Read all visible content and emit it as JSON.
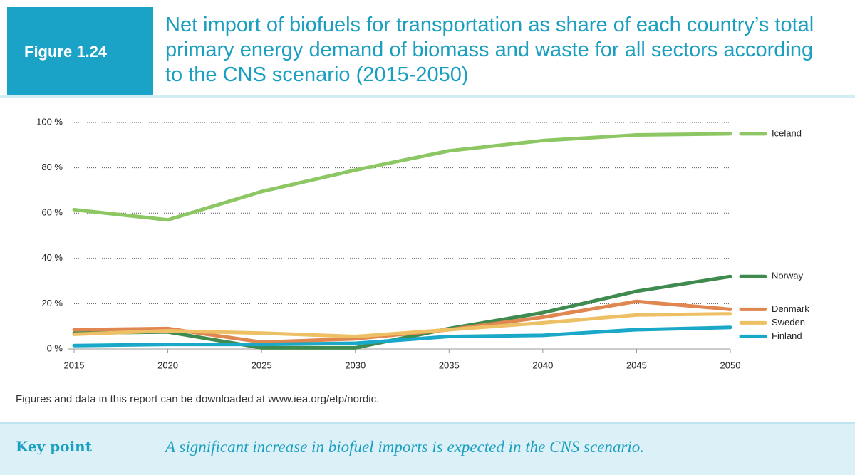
{
  "figure_label": "Figure 1.24",
  "chart_data": {
    "type": "line",
    "title": "Net import of biofuels for transportation as share of each country’s total primary energy demand of biomass and waste for all sectors according to the CNS scenario (2015-2050)",
    "x": [
      2015,
      2020,
      2025,
      2030,
      2035,
      2040,
      2045,
      2050
    ],
    "xlim": [
      2015,
      2050
    ],
    "xticks": [
      2015,
      2020,
      2025,
      2030,
      2035,
      2040,
      2045,
      2050
    ],
    "ylim": [
      0,
      100
    ],
    "yticks": [
      {
        "value": 0,
        "label": "0 %"
      },
      {
        "value": 20,
        "label": "20 %"
      },
      {
        "value": 40,
        "label": "40 %"
      },
      {
        "value": 60,
        "label": "60 %"
      },
      {
        "value": 80,
        "label": "80 %"
      },
      {
        "value": 100,
        "label": "100 %"
      }
    ],
    "grid": true,
    "series": [
      {
        "name": "Iceland",
        "color": "#8cc763",
        "values": [
          61.5,
          57,
          69.5,
          79,
          87.5,
          92,
          94.5,
          95
        ]
      },
      {
        "name": "Norway",
        "color": "#3f8a4f",
        "values": [
          7,
          7.5,
          0.5,
          0.5,
          9,
          16,
          25.5,
          32
        ]
      },
      {
        "name": "Denmark",
        "color": "#e08650",
        "values": [
          8.5,
          9,
          3,
          4.5,
          8.5,
          14,
          21,
          17.5
        ]
      },
      {
        "name": "Sweden",
        "color": "#eec065",
        "values": [
          6.5,
          8,
          7,
          5.5,
          8.5,
          11.5,
          15,
          15.5
        ]
      },
      {
        "name": "Finland",
        "color": "#1aa8c8",
        "values": [
          1.5,
          2,
          2,
          2.5,
          5.5,
          6,
          8.5,
          9.5
        ]
      }
    ]
  },
  "footnote": "Figures and data in this report can be downloaded at www.iea.org/etp/nordic.",
  "key_point": {
    "label": "Key point",
    "text": "A significant increase in biofuel imports is expected in the CNS scenario."
  }
}
